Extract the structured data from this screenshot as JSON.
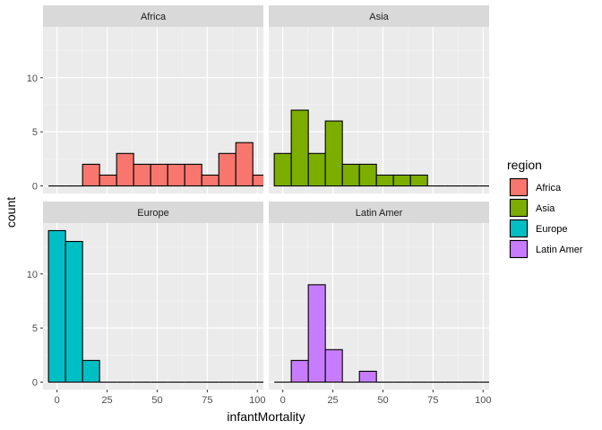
{
  "chart_data": {
    "type": "bar",
    "chart_kind": "faceted histogram",
    "xlabel": "infantMortality",
    "ylabel": "count",
    "xlim": [
      -7,
      103
    ],
    "ylim": [
      -0.7,
      14.7
    ],
    "x_ticks": [
      0,
      25,
      50,
      75,
      100
    ],
    "y_ticks": [
      0,
      5,
      10
    ],
    "grid": true,
    "bin_width": 8.5,
    "legend": {
      "title": "region",
      "placement": "right",
      "entries": [
        {
          "label": "Africa",
          "color": "#F8766D"
        },
        {
          "label": "Asia",
          "color": "#7CAE00"
        },
        {
          "label": "Europe",
          "color": "#00BFC4"
        },
        {
          "label": "Latin Amer",
          "color": "#C77CFF"
        }
      ]
    },
    "panels": [
      {
        "name": "Africa",
        "color": "#F8766D",
        "bins": [
          {
            "start": -4.25,
            "end": 4.25,
            "count": 0
          },
          {
            "start": 4.25,
            "end": 12.75,
            "count": 0
          },
          {
            "start": 12.75,
            "end": 21.25,
            "count": 2
          },
          {
            "start": 21.25,
            "end": 29.75,
            "count": 1
          },
          {
            "start": 29.75,
            "end": 38.25,
            "count": 3
          },
          {
            "start": 38.25,
            "end": 46.75,
            "count": 2
          },
          {
            "start": 46.75,
            "end": 55.25,
            "count": 2
          },
          {
            "start": 55.25,
            "end": 63.75,
            "count": 2
          },
          {
            "start": 63.75,
            "end": 72.25,
            "count": 2
          },
          {
            "start": 72.25,
            "end": 80.75,
            "count": 1
          },
          {
            "start": 80.75,
            "end": 89.25,
            "count": 3
          },
          {
            "start": 89.25,
            "end": 97.75,
            "count": 4
          },
          {
            "start": 97.75,
            "end": 106.25,
            "count": 1
          }
        ]
      },
      {
        "name": "Asia",
        "color": "#7CAE00",
        "bins": [
          {
            "start": -4.25,
            "end": 4.25,
            "count": 3
          },
          {
            "start": 4.25,
            "end": 12.75,
            "count": 7
          },
          {
            "start": 12.75,
            "end": 21.25,
            "count": 3
          },
          {
            "start": 21.25,
            "end": 29.75,
            "count": 6
          },
          {
            "start": 29.75,
            "end": 38.25,
            "count": 2
          },
          {
            "start": 38.25,
            "end": 46.75,
            "count": 2
          },
          {
            "start": 46.75,
            "end": 55.25,
            "count": 1
          },
          {
            "start": 55.25,
            "end": 63.75,
            "count": 1
          },
          {
            "start": 63.75,
            "end": 72.25,
            "count": 1
          },
          {
            "start": 72.25,
            "end": 80.75,
            "count": 0
          },
          {
            "start": 80.75,
            "end": 89.25,
            "count": 0
          },
          {
            "start": 89.25,
            "end": 97.75,
            "count": 0
          },
          {
            "start": 97.75,
            "end": 106.25,
            "count": 0
          }
        ]
      },
      {
        "name": "Europe",
        "color": "#00BFC4",
        "bins": [
          {
            "start": -4.25,
            "end": 4.25,
            "count": 14
          },
          {
            "start": 4.25,
            "end": 12.75,
            "count": 13
          },
          {
            "start": 12.75,
            "end": 21.25,
            "count": 2
          },
          {
            "start": 21.25,
            "end": 29.75,
            "count": 0
          },
          {
            "start": 29.75,
            "end": 38.25,
            "count": 0
          },
          {
            "start": 38.25,
            "end": 46.75,
            "count": 0
          },
          {
            "start": 46.75,
            "end": 55.25,
            "count": 0
          },
          {
            "start": 55.25,
            "end": 63.75,
            "count": 0
          },
          {
            "start": 63.75,
            "end": 72.25,
            "count": 0
          },
          {
            "start": 72.25,
            "end": 80.75,
            "count": 0
          },
          {
            "start": 80.75,
            "end": 89.25,
            "count": 0
          },
          {
            "start": 89.25,
            "end": 97.75,
            "count": 0
          },
          {
            "start": 97.75,
            "end": 106.25,
            "count": 0
          }
        ]
      },
      {
        "name": "Latin Amer",
        "color": "#C77CFF",
        "bins": [
          {
            "start": -4.25,
            "end": 4.25,
            "count": 0
          },
          {
            "start": 4.25,
            "end": 12.75,
            "count": 2
          },
          {
            "start": 12.75,
            "end": 21.25,
            "count": 9
          },
          {
            "start": 21.25,
            "end": 29.75,
            "count": 3
          },
          {
            "start": 29.75,
            "end": 38.25,
            "count": 0
          },
          {
            "start": 38.25,
            "end": 46.75,
            "count": 1
          },
          {
            "start": 46.75,
            "end": 55.25,
            "count": 0
          },
          {
            "start": 55.25,
            "end": 63.75,
            "count": 0
          },
          {
            "start": 63.75,
            "end": 72.25,
            "count": 0
          },
          {
            "start": 72.25,
            "end": 80.75,
            "count": 0
          },
          {
            "start": 80.75,
            "end": 89.25,
            "count": 0
          },
          {
            "start": 89.25,
            "end": 97.75,
            "count": 0
          },
          {
            "start": 97.75,
            "end": 106.25,
            "count": 0
          }
        ]
      }
    ]
  }
}
